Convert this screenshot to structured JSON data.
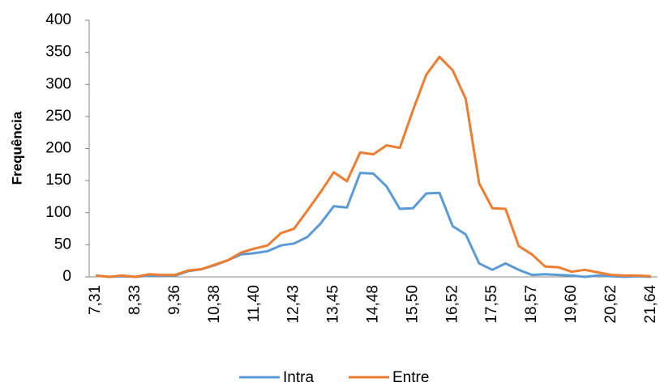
{
  "chart_data": {
    "type": "line",
    "y_label": "Frequência",
    "categories": [
      "7,31",
      null,
      null,
      "8,33",
      null,
      null,
      "9,36",
      null,
      null,
      "10,38",
      null,
      null,
      "11,40",
      null,
      null,
      "12,43",
      null,
      null,
      "13,45",
      null,
      null,
      "14,48",
      null,
      null,
      "15,50",
      null,
      null,
      "16,52",
      null,
      null,
      "17,55",
      null,
      null,
      "18,57",
      null,
      null,
      "19,60",
      null,
      null,
      "20,62",
      null,
      null,
      "21,64"
    ],
    "series": [
      {
        "name": "Intra",
        "color": "#5b9bd5",
        "values": [
          2,
          0,
          1,
          0,
          2,
          2,
          2,
          9,
          12,
          18,
          26,
          35,
          37,
          40,
          49,
          52,
          62,
          83,
          110,
          108,
          162,
          161,
          141,
          106,
          107,
          130,
          131,
          79,
          66,
          21,
          11,
          21,
          11,
          3,
          4,
          3,
          2,
          0,
          2,
          1,
          0,
          1,
          0
        ]
      },
      {
        "name": "Entre",
        "color": "#ed7d31",
        "values": [
          2,
          0,
          2,
          0,
          4,
          3,
          3,
          10,
          12,
          19,
          26,
          38,
          44,
          49,
          68,
          75,
          103,
          132,
          163,
          149,
          194,
          191,
          205,
          201,
          260,
          315,
          343,
          322,
          277,
          146,
          107,
          106,
          48,
          35,
          16,
          15,
          8,
          11,
          7,
          3,
          2,
          2,
          1
        ]
      }
    ],
    "ylim": [
      0,
      400
    ],
    "yticks": [
      0,
      50,
      100,
      150,
      200,
      250,
      300,
      350,
      400
    ],
    "grid": false,
    "legend": "bottom"
  }
}
